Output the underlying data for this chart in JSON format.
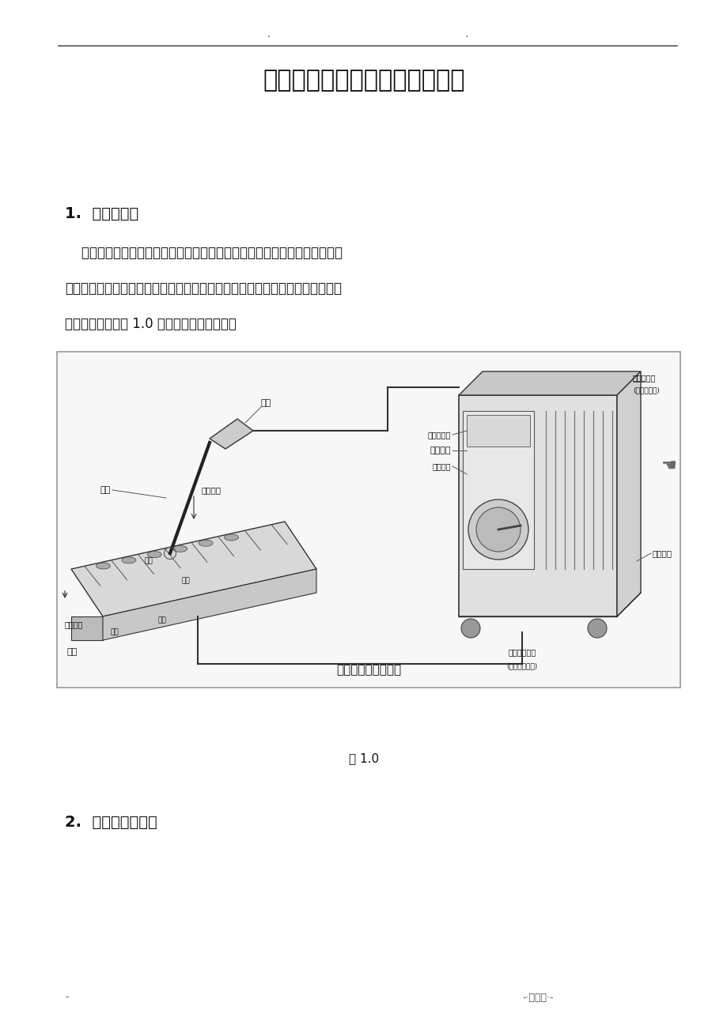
{
  "bg_color": "#ffffff",
  "page_width": 9.2,
  "page_height": 13.02,
  "title": "钢构造手工电弧焊焊接技能培训",
  "section1_title": "1.  手工电弧焊",
  "para1_line1": "    手工电弧焊也叫焊条电弧焊是用手工操纵焊条进展焊接的电弧焊方法。它利",
  "para1_line2": "用焊条与焊件之间建立起来的稳定燃烧的电弧，使焊条和焊件熔化，从而获得结",
  "para1_line3": "实的焊接接头。图 1.0 为手工电弧焊示意图。",
  "fig_caption": "手工电弧焊原理展示",
  "fig_label": "图 1.0",
  "section2_title": "2.  手工电弧焊特点",
  "footer_left": "-",
  "footer_right": "-·可修编·-"
}
